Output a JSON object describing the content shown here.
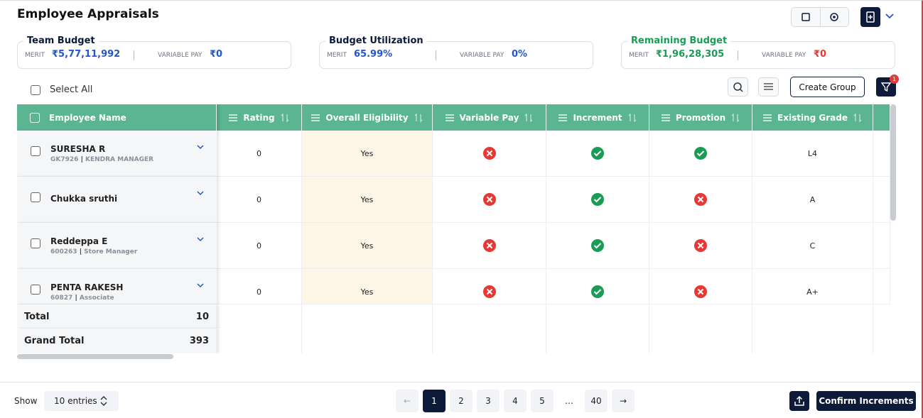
{
  "header": {
    "title": "Employee Appraisals"
  },
  "budgets": [
    {
      "title": "Team Budget",
      "merit_label": "MERIT",
      "merit": "₹5,77,11,992",
      "variable_label": "VARIABLE PAY",
      "variable": "₹0"
    },
    {
      "title": "Budget Utilization",
      "merit_label": "MERIT",
      "merit": "65.99%",
      "variable_label": "VARIABLE PAY",
      "variable": "0%"
    },
    {
      "title": "Remaining Budget",
      "merit_label": "MERIT",
      "merit": "₹1,96,28,305",
      "variable_label": "VARIABLE PAY",
      "variable": "₹0"
    }
  ],
  "toolbar": {
    "select_all": "Select All",
    "create_group": "Create Group",
    "filter_count": "1"
  },
  "table": {
    "columns": [
      "Employee Name",
      "Rating",
      "Overall Eligibility",
      "Variable Pay",
      "Increment",
      "Promotion",
      "Existing Grade"
    ],
    "rows": [
      {
        "name": "SURESHA R",
        "emp_id": "GK7926",
        "role": "KENDRA MANAGER",
        "rating": "0",
        "eligibility": "Yes",
        "variable_pay": false,
        "increment": true,
        "promotion": true,
        "grade": "L4"
      },
      {
        "name": "Chukka sruthi",
        "rating": "0",
        "eligibility": "Yes",
        "variable_pay": false,
        "increment": true,
        "promotion": false,
        "grade": "A"
      },
      {
        "name": "Reddeppa E",
        "emp_id": "600263",
        "role": "Store Manager",
        "rating": "0",
        "eligibility": "Yes",
        "variable_pay": false,
        "increment": true,
        "promotion": false,
        "grade": "C"
      },
      {
        "name": "PENTA RAKESH",
        "emp_id": "60827",
        "role": "Associate",
        "rating": "0",
        "eligibility": "Yes",
        "variable_pay": false,
        "increment": true,
        "promotion": false,
        "grade": "A+"
      }
    ],
    "totals": [
      {
        "label": "Total",
        "value": "10"
      },
      {
        "label": "Grand Total",
        "value": "393"
      }
    ]
  },
  "footer": {
    "show": "Show",
    "entries": "10 entries",
    "pages": [
      "1",
      "2",
      "3",
      "4",
      "5",
      "…",
      "40"
    ],
    "confirm": "Confirm Increments"
  }
}
